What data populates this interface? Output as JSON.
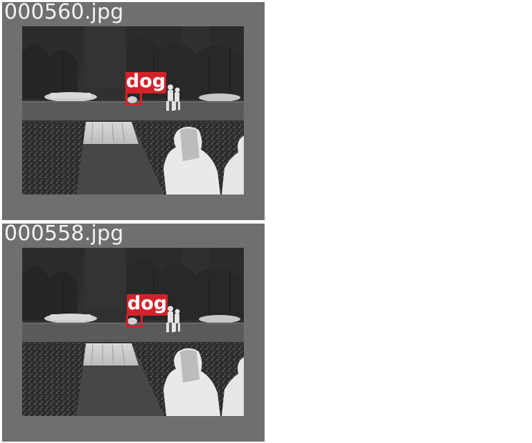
{
  "panels": [
    {
      "filename": "000560.jpg",
      "detection": {
        "label": "dog",
        "color": "#d4222a"
      }
    },
    {
      "filename": "000558.jpg",
      "detection": {
        "label": "dog",
        "color": "#d4222a"
      }
    }
  ],
  "colors": {
    "panel_background": "#6f6f6f",
    "page_background": "#ffffff",
    "detection_box": "#d4222a",
    "filename_text": "#f2f2f2"
  }
}
